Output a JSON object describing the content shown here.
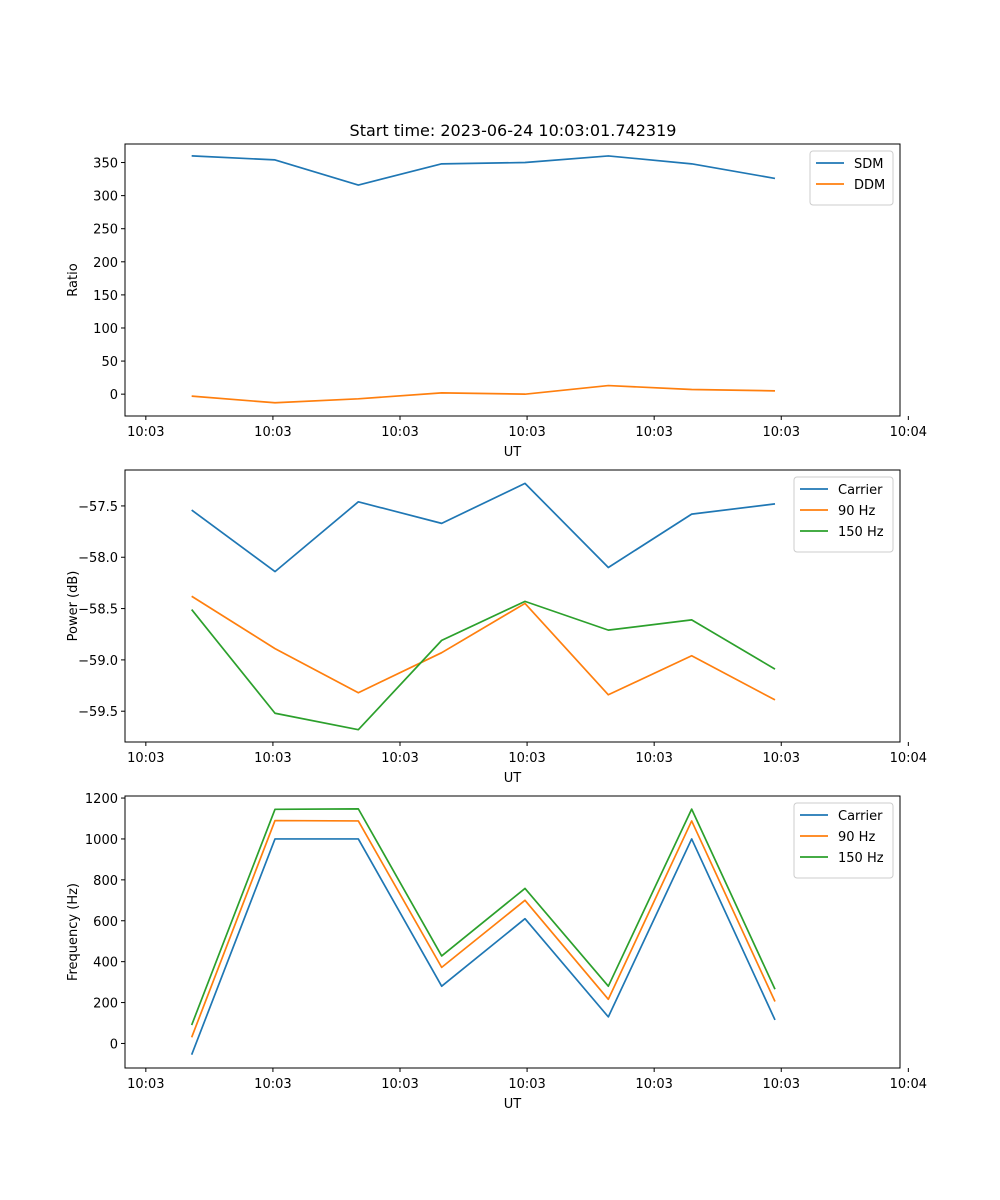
{
  "figure": {
    "title": "Start time: 2023-06-24 10:03:01.742319"
  },
  "chart_data": [
    {
      "type": "line",
      "title": "Start time: 2023-06-24 10:03:01.742319",
      "xlabel": "UT",
      "ylabel": "Ratio",
      "x": [
        1,
        2,
        3,
        4,
        5,
        6,
        7,
        8
      ],
      "xlim": [
        0.2,
        9.5
      ],
      "xticks": [
        0.45,
        1.975,
        3.5,
        5.025,
        6.55,
        8.075,
        9.6
      ],
      "xtick_labels": [
        "10:03",
        "10:03",
        "10:03",
        "10:03",
        "10:03",
        "10:03",
        "10:04"
      ],
      "ylim": [
        -33,
        378
      ],
      "yticks": [
        0,
        50,
        100,
        150,
        200,
        250,
        300,
        350
      ],
      "ytick_labels": [
        "0",
        "50",
        "100",
        "150",
        "200",
        "250",
        "300",
        "350"
      ],
      "legend_position": "top-right",
      "grid": false,
      "series": [
        {
          "name": "SDM",
          "color": "#1f77b4",
          "values": [
            360,
            354,
            316,
            348,
            350,
            360,
            348,
            326
          ]
        },
        {
          "name": "DDM",
          "color": "#ff7f0e",
          "values": [
            -3,
            -13,
            -7,
            2,
            0,
            13,
            7,
            5
          ]
        }
      ]
    },
    {
      "type": "line",
      "xlabel": "UT",
      "ylabel": "Power (dB)",
      "x": [
        1,
        2,
        3,
        4,
        5,
        6,
        7,
        8
      ],
      "xlim": [
        0.2,
        9.5
      ],
      "xticks": [
        0.45,
        1.975,
        3.5,
        5.025,
        6.55,
        8.075,
        9.6
      ],
      "xtick_labels": [
        "10:03",
        "10:03",
        "10:03",
        "10:03",
        "10:03",
        "10:03",
        "10:04"
      ],
      "ylim": [
        -59.8,
        -57.15
      ],
      "yticks": [
        -59.5,
        -59.0,
        -58.5,
        -58.0,
        -57.5
      ],
      "ytick_labels": [
        "−59.5",
        "−59.0",
        "−58.5",
        "−58.0",
        "−57.5"
      ],
      "legend_position": "top-right",
      "grid": false,
      "series": [
        {
          "name": "Carrier",
          "color": "#1f77b4",
          "values": [
            -57.54,
            -58.14,
            -57.46,
            -57.67,
            -57.28,
            -58.1,
            -57.58,
            -57.48
          ]
        },
        {
          "name": "90 Hz",
          "color": "#ff7f0e",
          "values": [
            -58.38,
            -58.89,
            -59.32,
            -58.93,
            -58.45,
            -59.34,
            -58.96,
            -59.39
          ]
        },
        {
          "name": "150 Hz",
          "color": "#2ca02c",
          "values": [
            -58.51,
            -59.52,
            -59.68,
            -58.81,
            -58.43,
            -58.71,
            -58.61,
            -59.09
          ]
        }
      ]
    },
    {
      "type": "line",
      "xlabel": "UT",
      "ylabel": "Frequency (Hz)",
      "x": [
        1,
        2,
        3,
        4,
        5,
        6,
        7,
        8
      ],
      "xlim": [
        0.2,
        9.5
      ],
      "xticks": [
        0.45,
        1.975,
        3.5,
        5.025,
        6.55,
        8.075,
        9.6
      ],
      "xtick_labels": [
        "10:03",
        "10:03",
        "10:03",
        "10:03",
        "10:03",
        "10:03",
        "10:04"
      ],
      "ylim": [
        -120,
        1210
      ],
      "yticks": [
        0,
        200,
        400,
        600,
        800,
        1000,
        1200
      ],
      "ytick_labels": [
        "0",
        "200",
        "400",
        "600",
        "800",
        "1000",
        "1200"
      ],
      "legend_position": "top-right",
      "grid": false,
      "series": [
        {
          "name": "Carrier",
          "color": "#1f77b4",
          "values": [
            -55,
            1000,
            1000,
            280,
            610,
            130,
            1000,
            115
          ]
        },
        {
          "name": "90 Hz",
          "color": "#ff7f0e",
          "values": [
            30,
            1090,
            1088,
            372,
            700,
            216,
            1088,
            205
          ]
        },
        {
          "name": "150 Hz",
          "color": "#2ca02c",
          "values": [
            90,
            1145,
            1147,
            428,
            758,
            280,
            1146,
            265
          ]
        }
      ]
    }
  ]
}
